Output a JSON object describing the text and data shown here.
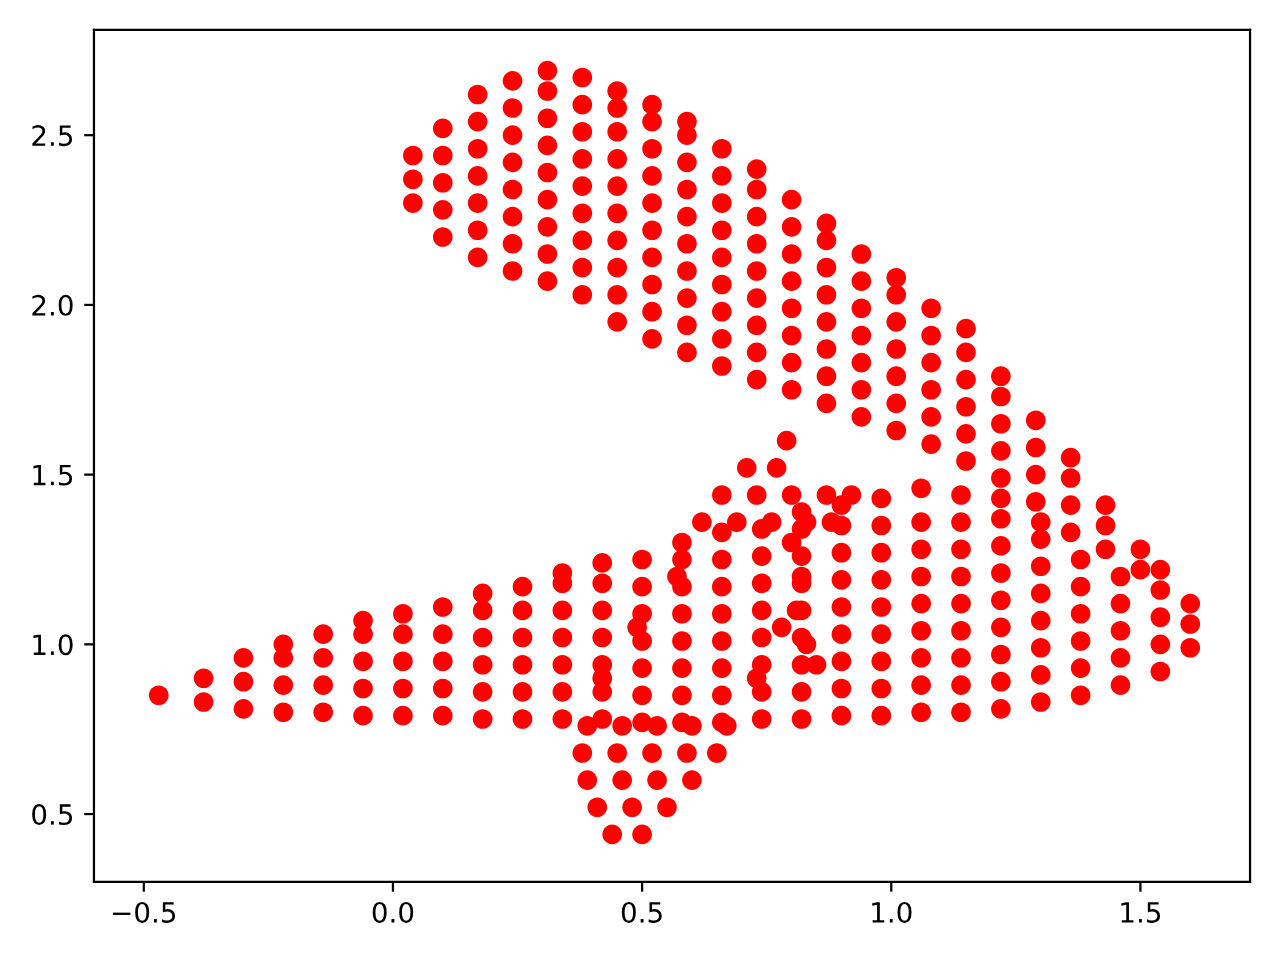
{
  "chart_data": {
    "type": "scatter",
    "marker": "circle",
    "xlim": [
      -0.6,
      1.72
    ],
    "ylim": [
      0.3,
      2.81
    ],
    "xticks": [
      {
        "value": -0.5,
        "label": "−0.5"
      },
      {
        "value": 0,
        "label": "0.0"
      },
      {
        "value": 0.5,
        "label": "0.5"
      },
      {
        "value": 1,
        "label": "1.0"
      },
      {
        "value": 1.5,
        "label": "1.5"
      }
    ],
    "yticks": [
      {
        "value": 0.5,
        "label": "0.5"
      },
      {
        "value": 1,
        "label": "1.0"
      },
      {
        "value": 1.5,
        "label": "1.5"
      },
      {
        "value": 2,
        "label": "2.0"
      },
      {
        "value": 2.5,
        "label": "2.5"
      }
    ],
    "series": [
      {
        "color": "#ff0000",
        "x": [
          0.04,
          0.04,
          0.04,
          0.1,
          0.1,
          0.1,
          0.1,
          0.1,
          0.17,
          0.17,
          0.17,
          0.17,
          0.17,
          0.17,
          0.17,
          0.24,
          0.24,
          0.24,
          0.24,
          0.24,
          0.24,
          0.24,
          0.24,
          0.31,
          0.31,
          0.31,
          0.31,
          0.31,
          0.31,
          0.31,
          0.31,
          0.31,
          0.38,
          0.38,
          0.38,
          0.38,
          0.38,
          0.38,
          0.38,
          0.38,
          0.38,
          0.45,
          0.45,
          0.45,
          0.45,
          0.45,
          0.45,
          0.45,
          0.45,
          0.45,
          0.45,
          0.52,
          0.52,
          0.52,
          0.52,
          0.52,
          0.52,
          0.52,
          0.52,
          0.52,
          0.52,
          0.59,
          0.59,
          0.59,
          0.59,
          0.59,
          0.59,
          0.59,
          0.59,
          0.59,
          0.59,
          0.66,
          0.66,
          0.66,
          0.66,
          0.66,
          0.66,
          0.66,
          0.66,
          0.66,
          0.73,
          0.73,
          0.73,
          0.73,
          0.73,
          0.73,
          0.73,
          0.73,
          0.73,
          0.8,
          0.8,
          0.8,
          0.8,
          0.8,
          0.8,
          0.8,
          0.8,
          0.87,
          0.87,
          0.87,
          0.87,
          0.87,
          0.87,
          0.87,
          0.87,
          0.94,
          0.94,
          0.94,
          0.94,
          0.94,
          0.94,
          0.94,
          1.01,
          1.01,
          1.01,
          1.01,
          1.01,
          1.01,
          1.01,
          1.08,
          1.08,
          1.08,
          1.08,
          1.08,
          1.08,
          1.15,
          1.15,
          1.15,
          1.15,
          1.15,
          1.15,
          1.22,
          1.22,
          1.22,
          1.22,
          1.22,
          1.29,
          1.29,
          1.29,
          1.29,
          1.36,
          1.36,
          1.36,
          1.36,
          1.43,
          1.43,
          1.43,
          1.5,
          1.5
        ],
        "values": [
          2.3,
          2.37,
          2.44,
          2.2,
          2.28,
          2.36,
          2.44,
          2.52,
          2.14,
          2.22,
          2.3,
          2.38,
          2.46,
          2.54,
          2.62,
          2.1,
          2.18,
          2.26,
          2.34,
          2.42,
          2.5,
          2.58,
          2.66,
          2.07,
          2.15,
          2.23,
          2.31,
          2.39,
          2.47,
          2.55,
          2.63,
          2.69,
          2.03,
          2.11,
          2.19,
          2.27,
          2.35,
          2.43,
          2.51,
          2.59,
          2.67,
          1.95,
          2.03,
          2.11,
          2.19,
          2.27,
          2.35,
          2.43,
          2.51,
          2.58,
          2.63,
          1.9,
          1.98,
          2.06,
          2.14,
          2.22,
          2.3,
          2.38,
          2.46,
          2.54,
          2.59,
          1.86,
          1.94,
          2.02,
          2.1,
          2.18,
          2.26,
          2.34,
          2.42,
          2.5,
          2.54,
          1.82,
          1.9,
          1.98,
          2.06,
          2.14,
          2.22,
          2.3,
          2.38,
          2.46,
          1.78,
          1.86,
          1.94,
          2.02,
          2.1,
          2.18,
          2.26,
          2.34,
          2.4,
          1.75,
          1.83,
          1.91,
          1.99,
          2.07,
          2.15,
          2.23,
          2.31,
          1.71,
          1.79,
          1.87,
          1.95,
          2.03,
          2.11,
          2.19,
          2.24,
          1.67,
          1.75,
          1.83,
          1.91,
          1.99,
          2.07,
          2.15,
          1.63,
          1.71,
          1.79,
          1.87,
          1.95,
          2.03,
          2.08,
          1.59,
          1.67,
          1.75,
          1.83,
          1.91,
          1.99,
          1.54,
          1.62,
          1.7,
          1.78,
          1.86,
          1.93,
          1.49,
          1.57,
          1.65,
          1.73,
          1.79,
          1.42,
          1.5,
          1.58,
          1.66,
          1.33,
          1.41,
          1.49,
          1.55,
          1.28,
          1.35,
          1.41,
          1.22,
          1.28
        ]
      },
      {
        "color": "#ff0000",
        "x": [
          -0.47,
          -0.38,
          -0.38,
          -0.3,
          -0.3,
          -0.3,
          -0.22,
          -0.22,
          -0.22,
          -0.22,
          -0.14,
          -0.14,
          -0.14,
          -0.14,
          -0.06,
          -0.06,
          -0.06,
          -0.06,
          -0.06,
          0.02,
          0.02,
          0.02,
          0.02,
          0.02,
          0.1,
          0.1,
          0.1,
          0.1,
          0.1,
          0.18,
          0.18,
          0.18,
          0.18,
          0.18,
          0.18,
          0.26,
          0.26,
          0.26,
          0.26,
          0.26,
          0.26,
          0.34,
          0.34,
          0.34,
          0.34,
          0.34,
          0.34,
          0.34,
          0.42,
          0.42,
          0.42,
          0.42,
          0.42,
          0.42,
          0.42
        ],
        "values": [
          0.85,
          0.83,
          0.9,
          0.81,
          0.89,
          0.96,
          0.8,
          0.88,
          0.96,
          1.0,
          0.8,
          0.88,
          0.96,
          1.03,
          0.79,
          0.87,
          0.95,
          1.03,
          1.07,
          0.79,
          0.87,
          0.95,
          1.03,
          1.09,
          0.79,
          0.87,
          0.95,
          1.03,
          1.11,
          0.78,
          0.86,
          0.94,
          1.02,
          1.1,
          1.15,
          0.78,
          0.86,
          0.94,
          1.02,
          1.1,
          1.17,
          0.78,
          0.86,
          0.94,
          1.02,
          1.1,
          1.18,
          1.21,
          0.78,
          0.86,
          0.94,
          1.02,
          1.1,
          1.18,
          1.24
        ]
      },
      {
        "color": "#ff0000",
        "x": [
          0.5,
          0.5,
          0.5,
          0.5,
          0.5,
          0.5,
          0.5,
          0.58,
          0.58,
          0.58,
          0.58,
          0.58,
          0.58,
          0.58,
          0.58,
          0.66,
          0.66,
          0.66,
          0.66,
          0.66,
          0.66,
          0.66,
          0.66,
          0.74,
          0.74,
          0.74,
          0.74,
          0.74,
          0.74,
          0.74,
          0.74,
          0.82,
          0.82,
          0.82,
          0.82,
          0.82,
          0.82,
          0.82,
          0.82,
          0.82,
          0.9,
          0.9,
          0.9,
          0.9,
          0.9,
          0.9,
          0.9,
          0.9,
          0.9,
          0.98,
          0.98,
          0.98,
          0.98,
          0.98,
          0.98,
          0.98,
          0.98,
          0.98,
          1.06,
          1.06,
          1.06,
          1.06,
          1.06,
          1.06,
          1.06,
          1.06,
          1.06,
          1.14,
          1.14,
          1.14,
          1.14,
          1.14,
          1.14,
          1.14,
          1.14,
          1.14,
          1.22,
          1.22,
          1.22,
          1.22,
          1.22,
          1.22,
          1.22,
          1.22,
          1.22,
          1.3,
          1.3,
          1.3,
          1.3,
          1.3,
          1.3,
          1.3,
          1.3,
          1.38,
          1.38,
          1.38,
          1.38,
          1.38,
          1.38,
          1.46,
          1.46,
          1.46,
          1.46,
          1.46,
          1.54,
          1.54,
          1.54,
          1.54,
          1.54,
          1.6,
          1.6,
          1.6
        ],
        "values": [
          0.77,
          0.85,
          0.93,
          1.01,
          1.09,
          1.17,
          1.25,
          0.77,
          0.85,
          0.93,
          1.01,
          1.09,
          1.17,
          1.25,
          1.3,
          0.77,
          0.85,
          0.93,
          1.01,
          1.09,
          1.17,
          1.25,
          1.33,
          0.78,
          0.86,
          0.94,
          1.02,
          1.1,
          1.18,
          1.26,
          1.34,
          0.78,
          0.86,
          0.94,
          1.02,
          1.1,
          1.18,
          1.26,
          1.34,
          1.39,
          0.79,
          0.87,
          0.95,
          1.03,
          1.11,
          1.19,
          1.27,
          1.35,
          1.41,
          0.79,
          0.87,
          0.95,
          1.03,
          1.11,
          1.19,
          1.27,
          1.35,
          1.43,
          0.8,
          0.88,
          0.96,
          1.04,
          1.12,
          1.2,
          1.28,
          1.36,
          1.46,
          0.8,
          0.88,
          0.96,
          1.04,
          1.12,
          1.2,
          1.28,
          1.36,
          1.44,
          0.81,
          0.89,
          0.97,
          1.05,
          1.13,
          1.21,
          1.29,
          1.37,
          1.43,
          0.83,
          0.91,
          0.99,
          1.07,
          1.15,
          1.23,
          1.31,
          1.36,
          0.85,
          0.93,
          1.01,
          1.09,
          1.17,
          1.25,
          0.88,
          0.96,
          1.04,
          1.12,
          1.2,
          0.92,
          1.0,
          1.08,
          1.16,
          1.22,
          0.99,
          1.06,
          1.12
        ]
      },
      {
        "color": "#ff0000",
        "x": [
          0.44,
          0.5,
          0.41,
          0.48,
          0.55,
          0.39,
          0.46,
          0.53,
          0.6,
          0.38,
          0.45,
          0.52,
          0.59,
          0.65,
          0.39,
          0.46,
          0.53,
          0.6,
          0.67,
          0.42,
          0.73,
          0.49,
          0.78,
          0.57,
          0.82,
          0.62,
          0.69,
          0.76,
          0.83,
          0.88,
          0.66,
          0.73,
          0.8,
          0.87,
          0.92,
          0.71,
          0.77,
          0.79,
          0.8,
          0.81,
          0.83,
          0.85
        ],
        "values": [
          0.44,
          0.44,
          0.52,
          0.52,
          0.52,
          0.6,
          0.6,
          0.6,
          0.6,
          0.68,
          0.68,
          0.68,
          0.68,
          0.68,
          0.76,
          0.76,
          0.76,
          0.76,
          0.76,
          0.9,
          0.9,
          1.05,
          1.05,
          1.2,
          1.2,
          1.36,
          1.36,
          1.36,
          1.36,
          1.36,
          1.44,
          1.44,
          1.44,
          1.44,
          1.44,
          1.52,
          1.52,
          1.6,
          1.3,
          1.1,
          1.0,
          0.94
        ]
      }
    ]
  }
}
